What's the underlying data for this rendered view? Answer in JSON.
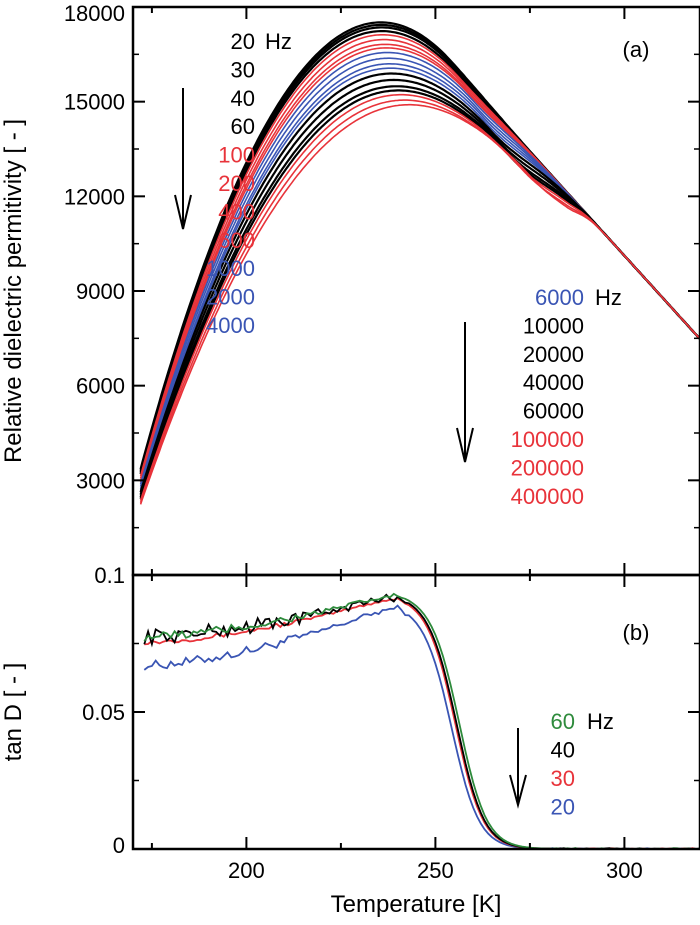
{
  "colors": {
    "black": "#000000",
    "red": "#e8333a",
    "blue": "#3a55b4",
    "green": "#2e8b3c"
  },
  "chart_data": [
    {
      "type": "line",
      "panel": "a",
      "panel_label": "(a)",
      "xlabel": "",
      "ylabel": "Relative dielectric permitivity [ - ]",
      "xlim": [
        170,
        320
      ],
      "ylim": [
        0,
        18000
      ],
      "yticks": [
        "3000",
        "6000",
        "9000",
        "12000",
        "15000",
        "18000"
      ],
      "peak_model": {
        "cross_T": 285,
        "cross_eps": 12100,
        "high_T_slope": -132,
        "width_low_K": 36,
        "width_high_K": 14
      },
      "legend_low": {
        "unit": "Hz",
        "entries": [
          {
            "label": "20",
            "color": "black"
          },
          {
            "label": "30",
            "color": "black"
          },
          {
            "label": "40",
            "color": "black"
          },
          {
            "label": "60",
            "color": "black"
          },
          {
            "label": "100",
            "color": "red"
          },
          {
            "label": "200",
            "color": "red"
          },
          {
            "label": "400",
            "color": "red"
          },
          {
            "label": "600",
            "color": "red"
          },
          {
            "label": "1000",
            "color": "blue"
          },
          {
            "label": "2000",
            "color": "blue"
          },
          {
            "label": "4000",
            "color": "blue"
          }
        ]
      },
      "legend_high": {
        "unit": "Hz",
        "entries": [
          {
            "label": "6000",
            "color": "blue"
          },
          {
            "label": "10000",
            "color": "black"
          },
          {
            "label": "20000",
            "color": "black"
          },
          {
            "label": "40000",
            "color": "black"
          },
          {
            "label": "60000",
            "color": "black"
          },
          {
            "label": "100000",
            "color": "red"
          },
          {
            "label": "200000",
            "color": "red"
          },
          {
            "label": "400000",
            "color": "red"
          }
        ]
      },
      "series": [
        {
          "freq_hz": 20,
          "color": "black",
          "peak_T": 254,
          "peak_eps": 16300,
          "eps_170K": 2450
        },
        {
          "freq_hz": 30,
          "color": "black",
          "peak_T": 254.4,
          "peak_eps": 16200,
          "eps_170K": 2400
        },
        {
          "freq_hz": 40,
          "color": "black",
          "peak_T": 254.8,
          "peak_eps": 16100,
          "eps_170K": 2350
        },
        {
          "freq_hz": 60,
          "color": "black",
          "peak_T": 255.3,
          "peak_eps": 15950,
          "eps_170K": 2300
        },
        {
          "freq_hz": 100,
          "color": "red",
          "peak_T": 256,
          "peak_eps": 15800,
          "eps_170K": 2250
        },
        {
          "freq_hz": 200,
          "color": "red",
          "peak_T": 257,
          "peak_eps": 15600,
          "eps_170K": 2180
        },
        {
          "freq_hz": 400,
          "color": "red",
          "peak_T": 258,
          "peak_eps": 15400,
          "eps_170K": 2120
        },
        {
          "freq_hz": 600,
          "color": "red",
          "peak_T": 258.8,
          "peak_eps": 15250,
          "eps_170K": 2080
        },
        {
          "freq_hz": 1000,
          "color": "blue",
          "peak_T": 259.8,
          "peak_eps": 15050,
          "eps_170K": 2030
        },
        {
          "freq_hz": 2000,
          "color": "blue",
          "peak_T": 261,
          "peak_eps": 14800,
          "eps_170K": 1970
        },
        {
          "freq_hz": 4000,
          "color": "blue",
          "peak_T": 262.3,
          "peak_eps": 14550,
          "eps_170K": 1910
        },
        {
          "freq_hz": 6000,
          "color": "blue",
          "peak_T": 263.2,
          "peak_eps": 14350,
          "eps_170K": 1870
        },
        {
          "freq_hz": 10000,
          "color": "black",
          "peak_T": 264.5,
          "peak_eps": 14100,
          "eps_170K": 1820
        },
        {
          "freq_hz": 20000,
          "color": "black",
          "peak_T": 266.3,
          "peak_eps": 13800,
          "eps_170K": 1760
        },
        {
          "freq_hz": 40000,
          "color": "black",
          "peak_T": 268.2,
          "peak_eps": 13500,
          "eps_170K": 1700
        },
        {
          "freq_hz": 60000,
          "color": "black",
          "peak_T": 269.5,
          "peak_eps": 13300,
          "eps_170K": 1660
        },
        {
          "freq_hz": 100000,
          "color": "red",
          "peak_T": 271,
          "peak_eps": 13100,
          "eps_170K": 1620
        },
        {
          "freq_hz": 200000,
          "color": "red",
          "peak_T": 273,
          "peak_eps": 12850,
          "eps_170K": 1570
        },
        {
          "freq_hz": 400000,
          "color": "red",
          "peak_T": 275,
          "peak_eps": 12650,
          "eps_170K": 1530
        }
      ]
    },
    {
      "type": "line",
      "panel": "b",
      "panel_label": "(b)",
      "xlabel": "Temperature [K]",
      "ylabel": "tan D [ - ]",
      "xlim": [
        170,
        320
      ],
      "ylim": [
        0,
        0.1
      ],
      "xticks": [
        "200",
        "250",
        "300"
      ],
      "yticks": [
        "0",
        "0.05",
        "0.1"
      ],
      "legend": {
        "unit": "Hz",
        "entries": [
          {
            "label": "60",
            "color": "green"
          },
          {
            "label": "40",
            "color": "black"
          },
          {
            "label": "30",
            "color": "red"
          },
          {
            "label": "20",
            "color": "blue"
          }
        ]
      },
      "series": [
        {
          "freq_hz": 20,
          "color": "blue",
          "tan_175K": 0.067,
          "tan_240K": 0.0895,
          "drop_mid_T": 254.5,
          "drop_width_K": 3.6,
          "noise": 0.0012
        },
        {
          "freq_hz": 30,
          "color": "red",
          "tan_175K": 0.0755,
          "tan_240K": 0.0925,
          "drop_mid_T": 255.5,
          "drop_width_K": 3.6,
          "noise": 0.0006
        },
        {
          "freq_hz": 40,
          "color": "black",
          "tan_175K": 0.0775,
          "tan_240K": 0.093,
          "drop_mid_T": 255.8,
          "drop_width_K": 3.6,
          "noise": 0.002
        },
        {
          "freq_hz": 60,
          "color": "green",
          "tan_175K": 0.0775,
          "tan_240K": 0.0935,
          "drop_mid_T": 256.5,
          "drop_width_K": 3.6,
          "noise": 0.0012
        }
      ]
    }
  ]
}
